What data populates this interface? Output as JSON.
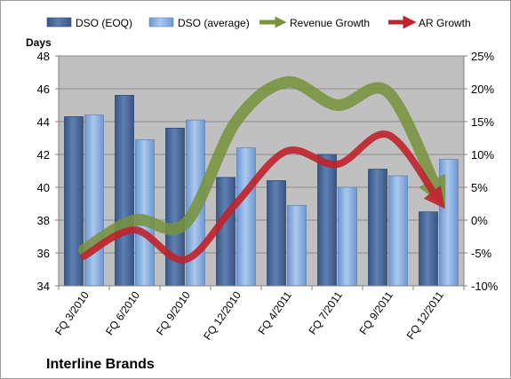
{
  "chart_data": {
    "type": "bar",
    "title": "Interline Brands",
    "ylabel": "Days",
    "ylim": [
      34,
      48
    ],
    "y_ticks": [
      34,
      36,
      38,
      40,
      42,
      44,
      46,
      48
    ],
    "y2lim": [
      -10,
      25
    ],
    "y2_ticks": [
      -10,
      -5,
      0,
      5,
      10,
      15,
      20,
      25
    ],
    "y2_tick_format": "percent",
    "grid": "horizontal",
    "legend_position": "top",
    "categories": [
      "FQ 3/2010",
      "FQ 6/2010",
      "FQ 9/2010",
      "FQ 12/2010",
      "FQ 4/2011",
      "FQ 7/2011",
      "FQ 9/2011",
      "FQ 12/2011"
    ],
    "x_tick_labels": [
      "FQ 3/2010",
      "FQ 6/2010",
      "FQ 9/2010",
      "FQ 12/2010",
      "FQ 4/2011",
      "FQ 7/2011",
      "FQ 9/2011",
      "FQ 12/2011"
    ],
    "series": [
      {
        "name": "DSO (EOQ)",
        "type": "bar",
        "axis": "left",
        "color": "#4f6fa0",
        "values": [
          44.3,
          45.6,
          43.6,
          40.6,
          40.4,
          42.0,
          41.1,
          38.5
        ]
      },
      {
        "name": "DSO (average)",
        "type": "bar",
        "axis": "left",
        "color": "#8fb4e3",
        "values": [
          44.4,
          42.9,
          44.1,
          42.4,
          38.9,
          40.0,
          40.7,
          41.7
        ]
      },
      {
        "name": "Revenue Growth",
        "type": "line",
        "axis": "right",
        "color": "#77933c",
        "values": [
          -4.5,
          0,
          -0.5,
          15,
          21,
          17.5,
          19.5,
          4
        ]
      },
      {
        "name": "AR Growth",
        "type": "line",
        "axis": "right",
        "color": "#c0232c",
        "values": [
          -5.5,
          -1.5,
          -6,
          2.5,
          10.5,
          8.5,
          13,
          3
        ]
      }
    ]
  }
}
